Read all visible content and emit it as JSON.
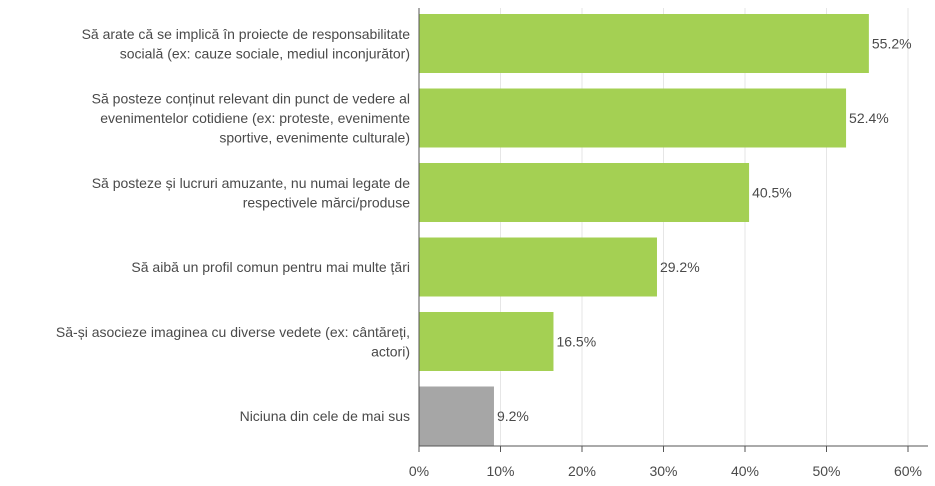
{
  "chart_data": {
    "type": "bar",
    "orientation": "horizontal",
    "title": "",
    "xlabel": "",
    "ylabel": "",
    "xlim": [
      0,
      60
    ],
    "grid": true,
    "legend": "none",
    "categories": [
      [
        "Să arate că se implică în proiecte de responsabilitate",
        "socială (ex: cauze sociale, mediul inconjurător)"
      ],
      [
        "Să posteze conținut relevant din punct de vedere al",
        "evenimentelor cotidiene (ex: proteste, evenimente",
        "sportive, evenimente culturale)"
      ],
      [
        "Să posteze și lucruri amuzante, nu numai legate de",
        "respectivele mărci/produse"
      ],
      [
        "Să aibă un profil comun pentru mai multe țări"
      ],
      [
        "Să-și asocieze imaginea cu diverse vedete (ex: cântăreți,",
        "actori)"
      ],
      [
        "Niciuna din cele de mai sus"
      ]
    ],
    "values": [
      55.2,
      52.4,
      40.5,
      29.2,
      16.5,
      9.2
    ],
    "value_labels": [
      "55.2%",
      "52.4%",
      "40.5%",
      "29.2%",
      "16.5%",
      "9.2%"
    ],
    "ticks": [
      0,
      10,
      20,
      30,
      40,
      50,
      60
    ],
    "tick_labels": [
      "0%",
      "10%",
      "20%",
      "30%",
      "40%",
      "50%",
      "60%"
    ],
    "colors": [
      "#a4d053",
      "#a4d053",
      "#a4d053",
      "#a4d053",
      "#a4d053",
      "#a6a6a6"
    ],
    "grid_color": "#e6e6e6",
    "axis_color": "#555555"
  }
}
